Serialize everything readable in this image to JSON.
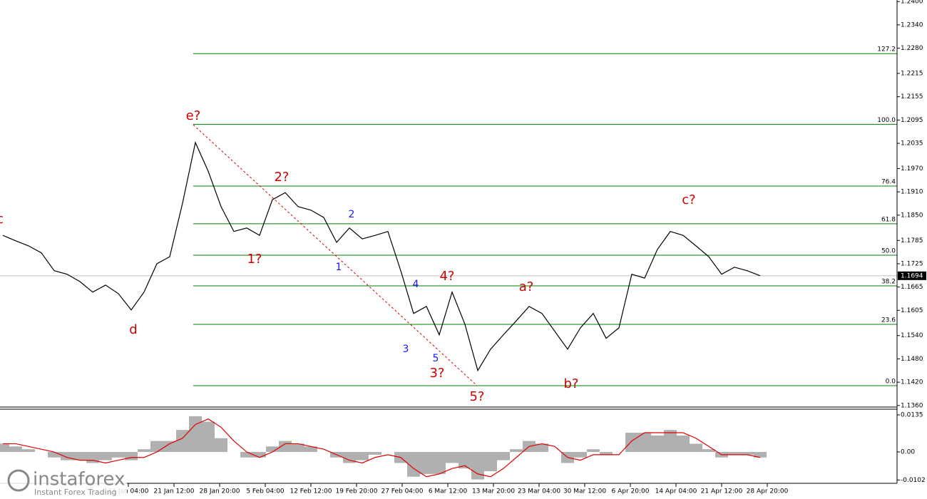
{
  "chart_data": {
    "type": "line",
    "price": [
      1.1798,
      1.1784,
      1.1771,
      1.1753,
      1.1707,
      1.1698,
      1.1679,
      1.1652,
      1.167,
      1.1648,
      1.1606,
      1.1652,
      1.1725,
      1.1743,
      1.1881,
      1.2037,
      1.1963,
      1.1872,
      1.1808,
      1.1817,
      1.1798,
      1.189,
      1.1908,
      1.1872,
      1.1863,
      1.1844,
      1.178,
      1.1817,
      1.1789,
      1.1798,
      1.1808,
      1.1707,
      1.1597,
      1.1615,
      1.1542,
      1.1652,
      1.1569,
      1.145,
      1.1505,
      1.1542,
      1.1578,
      1.1615,
      1.1597,
      1.1551,
      1.1505,
      1.156,
      1.1597,
      1.1533,
      1.156,
      1.1698,
      1.1688,
      1.1762,
      1.1808,
      1.1798,
      1.1771,
      1.1743,
      1.1698,
      1.1716,
      1.1707,
      1.1694
    ],
    "price_color": "#000000",
    "ylim": [
      1.1356,
      1.2404
    ],
    "yticks": [
      {
        "value": 1.24,
        "label": "1.2400"
      },
      {
        "value": 1.234,
        "label": "1.2340"
      },
      {
        "value": 1.228,
        "label": "1.2280"
      },
      {
        "value": 1.2215,
        "label": "1.2215"
      },
      {
        "value": 1.2155,
        "label": "1.2155"
      },
      {
        "value": 1.2095,
        "label": "1.2095"
      },
      {
        "value": 1.2035,
        "label": "1.2035"
      },
      {
        "value": 1.197,
        "label": "1.1970"
      },
      {
        "value": 1.191,
        "label": "1.1910"
      },
      {
        "value": 1.185,
        "label": "1.1850"
      },
      {
        "value": 1.1785,
        "label": "1.1785"
      },
      {
        "value": 1.1725,
        "label": "1.1725"
      },
      {
        "value": 1.1665,
        "label": "1.1665"
      },
      {
        "value": 1.1605,
        "label": "1.1605"
      },
      {
        "value": 1.154,
        "label": "1.1540"
      },
      {
        "value": 1.148,
        "label": "1.1480"
      },
      {
        "value": 1.142,
        "label": "1.1420"
      },
      {
        "value": 1.136,
        "label": "1.1360"
      }
    ],
    "last_price": {
      "value": 1.1694,
      "label": "1.1694"
    },
    "fib_color": "#008000",
    "fib_levels": [
      {
        "label": "127.2",
        "price": 1.2266
      },
      {
        "label": "100.0",
        "price": 1.2084
      },
      {
        "label": "76.4",
        "price": 1.1925
      },
      {
        "label": "61.8",
        "price": 1.1828
      },
      {
        "label": "50.0",
        "price": 1.1747
      },
      {
        "label": "38.2",
        "price": 1.1668
      },
      {
        "label": "23.6",
        "price": 1.1569
      },
      {
        "label": "0.0",
        "price": 1.1411
      }
    ],
    "x_labels": [
      "14 Jan 04:00",
      "21 Jan 12:00",
      "28 Jan 20:00",
      "5 Feb 04:00",
      "12 Feb 12:00",
      "19 Feb 20:00",
      "27 Feb 04:00",
      "6 Mar 12:00",
      "13 Mar 20:00",
      "23 Mar 04:00",
      "30 Mar 12:00",
      "6 Apr 20:00",
      "14 Apr 04:00",
      "21 Apr 12:00",
      "28 Apr 20:00"
    ],
    "oscillator": {
      "histogram": [
        0.003,
        0.002,
        0.001,
        0.0,
        -0.002,
        -0.003,
        -0.003,
        -0.004,
        -0.003,
        -0.002,
        -0.003,
        0.001,
        0.004,
        0.004,
        0.008,
        0.013,
        0.011,
        0.005,
        0.0,
        -0.002,
        -0.002,
        0.002,
        0.004,
        0.003,
        0.002,
        0.0,
        -0.002,
        -0.004,
        -0.003,
        -0.001,
        0.0,
        -0.004,
        -0.009,
        -0.008,
        -0.008,
        -0.004,
        -0.006,
        -0.01,
        -0.007,
        -0.003,
        0.001,
        0.004,
        0.003,
        0.0,
        -0.004,
        -0.002,
        0.001,
        -0.001,
        0.0,
        0.007,
        0.007,
        0.006,
        0.008,
        0.006,
        0.003,
        0.001,
        -0.002,
        -0.001,
        -0.001,
        -0.002
      ],
      "histogram_color": "#b0b0b0",
      "signal": [
        0.003,
        0.003,
        0.002,
        0.001,
        0.0,
        -0.002,
        -0.003,
        -0.003,
        -0.004,
        -0.003,
        -0.002,
        -0.002,
        0.0,
        0.003,
        0.005,
        0.01,
        0.012,
        0.009,
        0.004,
        0.0,
        -0.002,
        0.0,
        0.003,
        0.003,
        0.002,
        0.001,
        -0.001,
        -0.003,
        -0.004,
        -0.002,
        -0.001,
        -0.002,
        -0.006,
        -0.009,
        -0.008,
        -0.006,
        -0.005,
        -0.008,
        -0.009,
        -0.006,
        -0.002,
        0.002,
        0.003,
        0.002,
        -0.002,
        -0.003,
        -0.001,
        -0.001,
        -0.001,
        0.004,
        0.007,
        0.007,
        0.007,
        0.007,
        0.005,
        0.002,
        -0.001,
        -0.001,
        -0.001,
        -0.002
      ],
      "signal_color": "#e00000",
      "ylim": [
        -0.0114,
        0.0153
      ],
      "yticks": [
        0.0135,
        {
          "value": 0,
          "label": "0.00"
        },
        -0.0102
      ]
    },
    "annotations": [
      {
        "text": "c",
        "color": "#cc0000"
      },
      {
        "text": "d",
        "color": "#cc0000"
      },
      {
        "text": "e?",
        "color": "#cc0000"
      },
      {
        "text": "2?",
        "color": "#cc0000"
      },
      {
        "text": "1?",
        "color": "#cc0000"
      },
      {
        "text": "1",
        "color": "#1a1aff"
      },
      {
        "text": "2",
        "color": "#1a1aff"
      },
      {
        "text": "3",
        "color": "#1a1aff"
      },
      {
        "text": "4",
        "color": "#1a1aff"
      },
      {
        "text": "5",
        "color": "#1a1aff"
      },
      {
        "text": "3?",
        "color": "#cc0000"
      },
      {
        "text": "4?",
        "color": "#cc0000"
      },
      {
        "text": "5?",
        "color": "#cc0000"
      },
      {
        "text": "a?",
        "color": "#cc0000"
      },
      {
        "text": "b?",
        "color": "#cc0000"
      },
      {
        "text": "c?",
        "color": "#cc0000"
      }
    ],
    "watermark": {
      "brand": "instaforex",
      "tagline": "Instant Forex Trading"
    }
  }
}
